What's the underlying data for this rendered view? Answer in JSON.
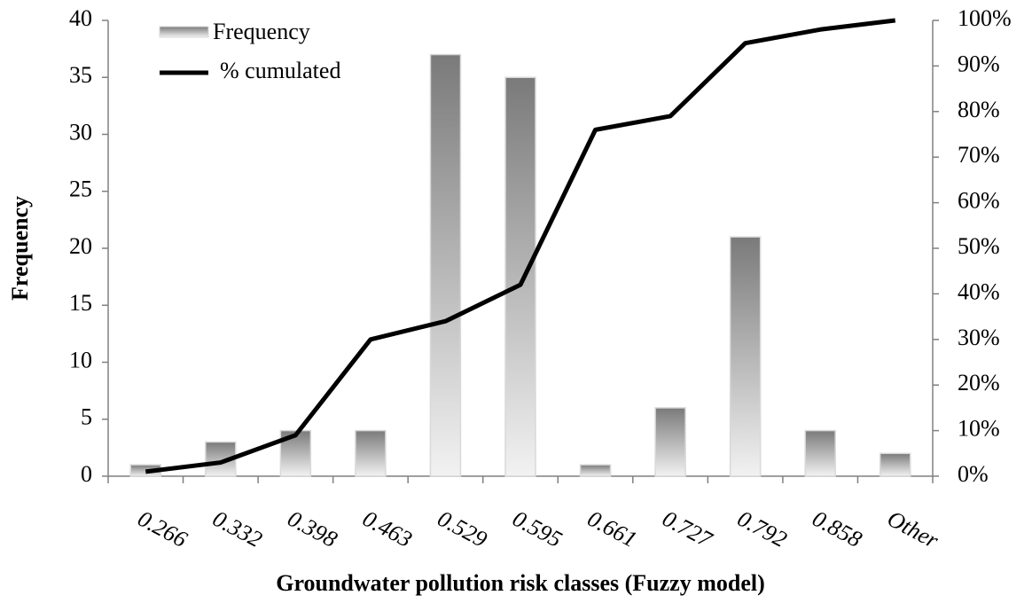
{
  "chart_data": {
    "type": "bar-line",
    "x_label": "Groundwater pollution risk classes (Fuzzy model)",
    "y_label": "Frequency",
    "categories": [
      "0.266",
      "0.332",
      "0.398",
      "0.463",
      "0.529",
      "0.595",
      "0.661",
      "0.727",
      "0.792",
      "0.858",
      "Other"
    ],
    "series": [
      {
        "name": "Frequency",
        "type": "bar",
        "color": "#7a7a7a",
        "values": [
          1,
          3,
          4,
          4,
          37,
          35,
          1,
          6,
          21,
          4,
          2
        ]
      },
      {
        "name": "% cumulated",
        "type": "line",
        "axis": "y2",
        "color": "#000000",
        "values": [
          1,
          3,
          9,
          30,
          34,
          42,
          76,
          79,
          95,
          98,
          100
        ]
      }
    ],
    "ylim": [
      0,
      40
    ],
    "yticks": [
      0,
      5,
      10,
      15,
      20,
      25,
      30,
      35,
      40
    ],
    "y2lim": [
      0,
      100
    ],
    "y2ticks": [
      {
        "value": 0,
        "label": "0%"
      },
      {
        "value": 10,
        "label": "10%"
      },
      {
        "value": 20,
        "label": "20%"
      },
      {
        "value": 30,
        "label": "30%"
      },
      {
        "value": 40,
        "label": "40%"
      },
      {
        "value": 50,
        "label": "50%"
      },
      {
        "value": 60,
        "label": "60%"
      },
      {
        "value": 70,
        "label": "70%"
      },
      {
        "value": 80,
        "label": "80%"
      },
      {
        "value": 90,
        "label": "90%"
      },
      {
        "value": 100,
        "label": "100%"
      }
    ],
    "grid": false,
    "legend": "upper left"
  }
}
